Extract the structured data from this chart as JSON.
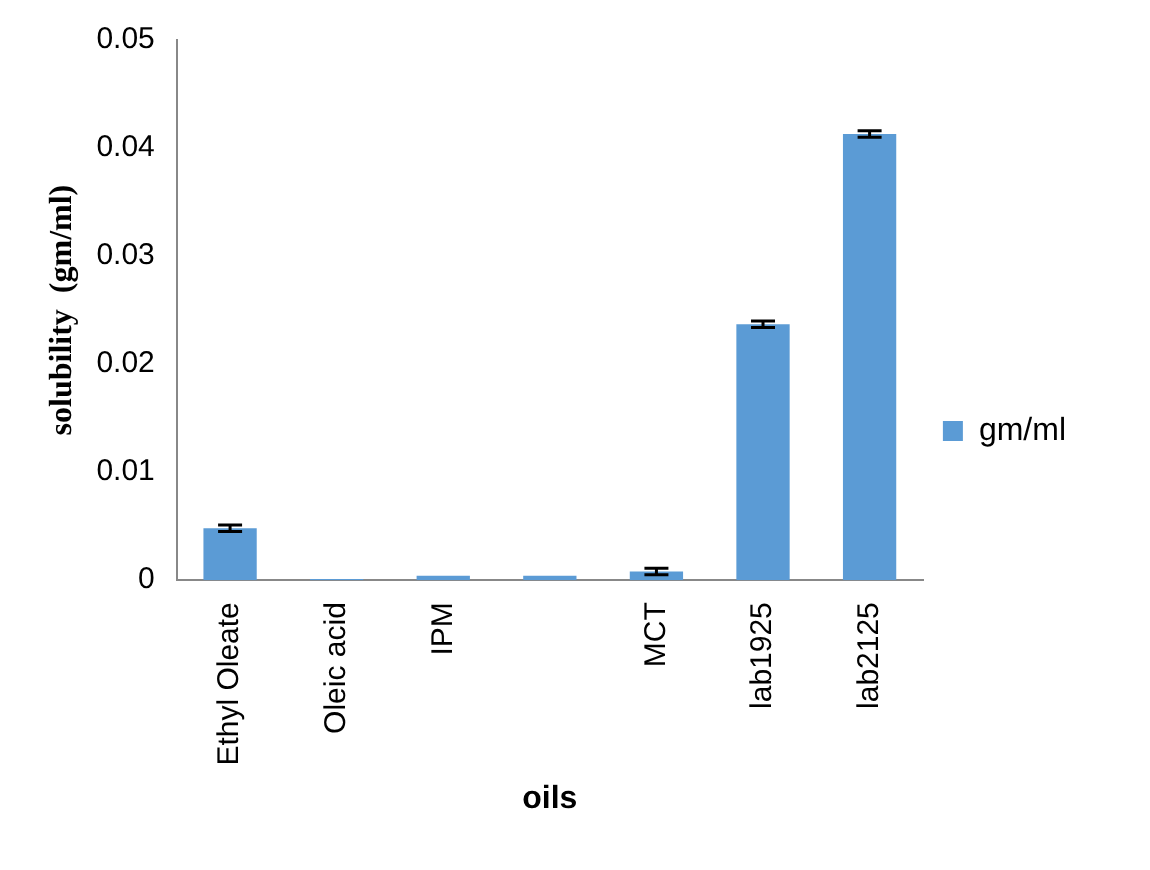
{
  "chart_data": {
    "type": "bar",
    "xlabel": "oils",
    "ylabel": "solubility  (gm/ml)",
    "categories": [
      "Ethyl Oleate",
      "Oleic acid",
      "IPM",
      null,
      "MCT",
      "lab1925",
      "lab2125"
    ],
    "series": [
      {
        "name": "gm/ml",
        "color": "#5b9bd5",
        "values": [
          0.0048,
          0.0001,
          0.0004,
          0.0004,
          0.0008,
          0.0237,
          0.0413
        ],
        "errors": [
          0.0003,
          null,
          null,
          null,
          0.0003,
          0.0003,
          0.0003
        ]
      }
    ],
    "ylim": [
      0,
      0.05
    ],
    "yticks": [
      0,
      0.01,
      0.02,
      0.03,
      0.04,
      0.05
    ],
    "grid": false,
    "legend": "right"
  }
}
